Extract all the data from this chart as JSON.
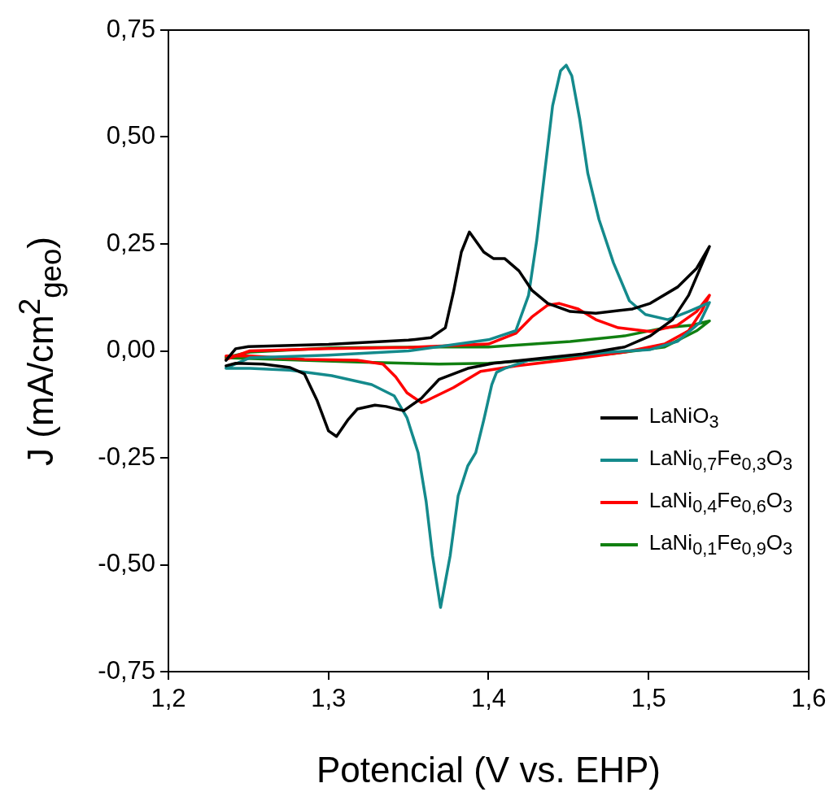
{
  "chart_data": {
    "type": "line",
    "xlabel": "Potencial (V vs. EHP)",
    "ylabel": "J (mA/cm$^{2}$$_{geo}$)",
    "xlim": [
      1.2,
      1.6
    ],
    "ylim": [
      -0.75,
      0.75
    ],
    "xticks": [
      {
        "value": 1.2,
        "label": "1,2"
      },
      {
        "value": 1.3,
        "label": "1,3"
      },
      {
        "value": 1.4,
        "label": "1,4"
      },
      {
        "value": 1.5,
        "label": "1,5"
      },
      {
        "value": 1.6,
        "label": "1,6"
      }
    ],
    "yticks": [
      {
        "value": -0.75,
        "label": "-0,75"
      },
      {
        "value": -0.5,
        "label": "-0,50"
      },
      {
        "value": -0.25,
        "label": "-0,25"
      },
      {
        "value": 0,
        "label": "0,00"
      },
      {
        "value": 0.25,
        "label": "0,25"
      },
      {
        "value": 0.5,
        "label": "0,50"
      },
      {
        "value": 0.75,
        "label": "0,75"
      }
    ],
    "grid": false,
    "legend": "bottom right",
    "marker": "none",
    "line_style": "solid",
    "series": [
      {
        "name": "LaNiO$_{3}$",
        "color": "#000000",
        "x": [
          1.236,
          1.242,
          1.25,
          1.3,
          1.35,
          1.364,
          1.373,
          1.378,
          1.383,
          1.388,
          1.397,
          1.403,
          1.41,
          1.419,
          1.427,
          1.437,
          1.451,
          1.467,
          1.49,
          1.501,
          1.518,
          1.53,
          1.538,
          1.525,
          1.515,
          1.501,
          1.485,
          1.459,
          1.403,
          1.387,
          1.369,
          1.358,
          1.347,
          1.336,
          1.329,
          1.318,
          1.312,
          1.305,
          1.3,
          1.293,
          1.285,
          1.276,
          1.259,
          1.242,
          1.236
        ],
        "values": [
          -0.022,
          0.005,
          0.01,
          0.015,
          0.025,
          0.031,
          0.054,
          0.136,
          0.231,
          0.278,
          0.231,
          0.216,
          0.216,
          0.187,
          0.142,
          0.111,
          0.092,
          0.088,
          0.098,
          0.111,
          0.149,
          0.193,
          0.244,
          0.13,
          0.073,
          0.035,
          0.009,
          -0.007,
          -0.029,
          -0.041,
          -0.067,
          -0.111,
          -0.14,
          -0.13,
          -0.127,
          -0.136,
          -0.162,
          -0.2,
          -0.187,
          -0.117,
          -0.054,
          -0.039,
          -0.031,
          -0.029,
          -0.035
        ]
      },
      {
        "name": "LaNi$_{0,7}$Fe$_{0,3}$O$_{3}$",
        "color": "#148a8c",
        "x": [
          1.236,
          1.251,
          1.3,
          1.35,
          1.4,
          1.417,
          1.425,
          1.43,
          1.435,
          1.44,
          1.445,
          1.4485,
          1.452,
          1.457,
          1.462,
          1.469,
          1.478,
          1.488,
          1.498,
          1.512,
          1.525,
          1.538,
          1.532,
          1.518,
          1.501,
          1.476,
          1.451,
          1.425,
          1.41,
          1.405,
          1.402,
          1.397,
          1.392,
          1.387,
          1.381,
          1.376,
          1.37,
          1.365,
          1.361,
          1.356,
          1.349,
          1.341,
          1.327,
          1.302,
          1.276,
          1.251,
          1.236
        ],
        "values": [
          -0.04,
          -0.016,
          -0.01,
          0.0,
          0.026,
          0.047,
          0.13,
          0.256,
          0.415,
          0.573,
          0.655,
          0.668,
          0.643,
          0.541,
          0.415,
          0.307,
          0.206,
          0.117,
          0.085,
          0.073,
          0.092,
          0.113,
          0.066,
          0.022,
          0.003,
          -0.003,
          -0.012,
          -0.022,
          -0.041,
          -0.05,
          -0.079,
          -0.162,
          -0.238,
          -0.269,
          -0.339,
          -0.479,
          -0.6,
          -0.479,
          -0.352,
          -0.238,
          -0.156,
          -0.105,
          -0.079,
          -0.058,
          -0.045,
          -0.041,
          -0.041
        ]
      },
      {
        "name": "LaNi$_{0,4}$Fe$_{0,6}$O$_{3}$",
        "color": "#ff0000",
        "x": [
          1.236,
          1.251,
          1.3,
          1.35,
          1.4,
          1.417,
          1.427,
          1.437,
          1.444,
          1.456,
          1.467,
          1.481,
          1.501,
          1.518,
          1.53,
          1.538,
          1.533,
          1.525,
          1.51,
          1.485,
          1.451,
          1.417,
          1.4,
          1.395,
          1.378,
          1.361,
          1.358,
          1.349,
          1.342,
          1.334,
          1.318,
          1.285,
          1.251,
          1.236
        ],
        "values": [
          -0.02,
          0.0,
          0.005,
          0.008,
          0.016,
          0.041,
          0.079,
          0.107,
          0.111,
          0.098,
          0.073,
          0.054,
          0.045,
          0.06,
          0.092,
          0.13,
          0.092,
          0.047,
          0.016,
          -0.003,
          -0.02,
          -0.035,
          -0.045,
          -0.048,
          -0.086,
          -0.117,
          -0.121,
          -0.098,
          -0.061,
          -0.031,
          -0.022,
          -0.02,
          -0.012,
          -0.012
        ]
      },
      {
        "name": "LaNi$_{0,1}$Fe$_{0,9}$O$_{3}$",
        "color": "#118011",
        "x": [
          1.236,
          1.251,
          1.302,
          1.369,
          1.4,
          1.451,
          1.485,
          1.51,
          1.527,
          1.538,
          1.53,
          1.51,
          1.476,
          1.434,
          1.4,
          1.369,
          1.318,
          1.268,
          1.236
        ],
        "values": [
          -0.015,
          -0.003,
          0.007,
          0.009,
          0.009,
          0.022,
          0.035,
          0.054,
          0.06,
          0.07,
          0.047,
          0.009,
          -0.007,
          -0.02,
          -0.029,
          -0.031,
          -0.026,
          -0.02,
          -0.016
        ]
      }
    ]
  }
}
